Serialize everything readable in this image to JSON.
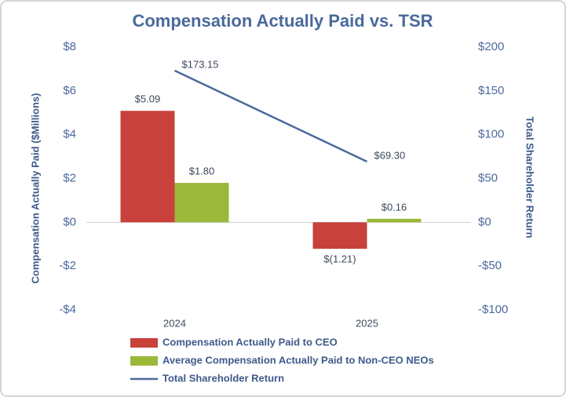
{
  "chart_data": {
    "type": "bar",
    "title": "Compensation Actually Paid vs. TSR",
    "y_label": "Compensation Actually Paid ($Millions)",
    "y2_label": "Total Shareholder Return",
    "categories": [
      "2024",
      "2025"
    ],
    "series": [
      {
        "name": "Compensation Actually Paid to CEO",
        "color": "#c8413b",
        "type": "bar",
        "values": [
          5.09,
          -1.21
        ],
        "value_labels": [
          "$5.09",
          "$(1.21)"
        ]
      },
      {
        "name": "Average Compensation Actually Paid to Non-CEO NEOs",
        "color": "#9bb83a",
        "type": "bar",
        "values": [
          1.8,
          0.16
        ],
        "value_labels": [
          "$1.80",
          "$0.16"
        ]
      },
      {
        "name": "Total Shareholder Return",
        "color": "#4a6a9b",
        "type": "line",
        "axis": "y2",
        "values": [
          173.15,
          69.3
        ],
        "value_labels": [
          "$173.15",
          "$69.30"
        ]
      }
    ],
    "ylim": [
      -4,
      8
    ],
    "yticks": [
      {
        "value": -4,
        "label": "-$4"
      },
      {
        "value": -2,
        "label": "-$2"
      },
      {
        "value": 0,
        "label": "$0"
      },
      {
        "value": 2,
        "label": "$2"
      },
      {
        "value": 4,
        "label": "$4"
      },
      {
        "value": 6,
        "label": "$6"
      },
      {
        "value": 8,
        "label": "$8"
      }
    ],
    "y2lim": [
      -100,
      200
    ],
    "y2ticks": [
      {
        "value": -100,
        "label": "-$100"
      },
      {
        "value": -50,
        "label": "-$50"
      },
      {
        "value": 0,
        "label": "$0"
      },
      {
        "value": 50,
        "label": "$50"
      },
      {
        "value": 100,
        "label": "$100"
      },
      {
        "value": 150,
        "label": "$150"
      },
      {
        "value": 200,
        "label": "$200"
      }
    ]
  }
}
